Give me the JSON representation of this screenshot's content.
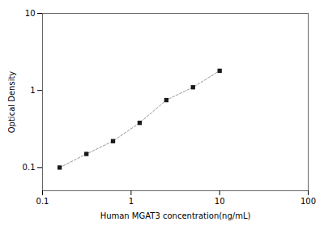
{
  "chart_data": {
    "type": "line",
    "x": [
      0.156,
      0.313,
      0.625,
      1.25,
      2.5,
      5.0,
      10.0
    ],
    "values": [
      0.1,
      0.15,
      0.22,
      0.38,
      0.75,
      1.1,
      1.8
    ],
    "xlabel": "Human MGAT3 concentration(ng/mL)",
    "ylabel": "Optical Density",
    "xlim": [
      0.1,
      100
    ],
    "ylim": [
      0.05,
      10
    ],
    "xticks": [
      0.1,
      1,
      10,
      100
    ],
    "yticks": [
      0.1,
      1,
      10
    ],
    "log": true,
    "grid": false,
    "marker": "square",
    "line_style": "dashed",
    "color": "#1a1a1a"
  }
}
